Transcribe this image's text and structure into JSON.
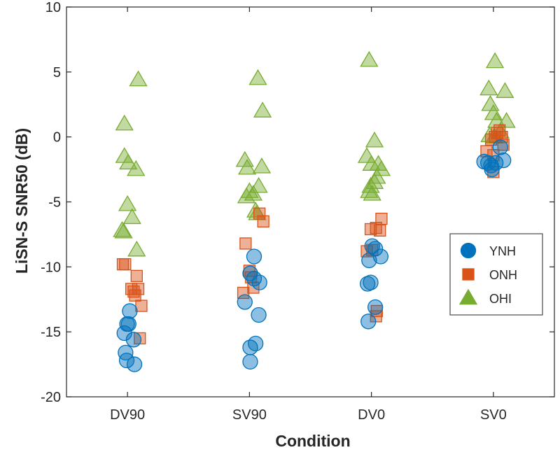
{
  "chart_data": {
    "type": "scatter",
    "xlabel": "Condition",
    "ylabel": "LiSN-S SNR50 (dB)",
    "categories": [
      "DV90",
      "SV90",
      "DV0",
      "SV0"
    ],
    "ylim": [
      -20,
      10
    ],
    "yticks": [
      10,
      5,
      0,
      -5,
      -10,
      -15,
      -20
    ],
    "ytick_labels": [
      "10",
      "5",
      "0",
      "-5",
      "-10",
      "-15",
      "-20"
    ],
    "grid": false,
    "legend_position": "right",
    "series": [
      {
        "name": "YNH",
        "marker": "circle",
        "color": "#0072BD",
        "points": [
          {
            "category": "DV90",
            "offset": 0.3,
            "y": -13.4
          },
          {
            "category": "DV90",
            "offset": -0.05,
            "y": -14.4
          },
          {
            "category": "DV90",
            "offset": 0.15,
            "y": -14.4
          },
          {
            "category": "DV90",
            "offset": -0.4,
            "y": -15.1
          },
          {
            "category": "DV90",
            "offset": 0.8,
            "y": -15.6
          },
          {
            "category": "DV90",
            "offset": -0.25,
            "y": -16.6
          },
          {
            "category": "DV90",
            "offset": -0.1,
            "y": -17.2
          },
          {
            "category": "DV90",
            "offset": 0.9,
            "y": -17.5
          },
          {
            "category": "SV90",
            "offset": 0.6,
            "y": -9.2
          },
          {
            "category": "SV90",
            "offset": 0.1,
            "y": -10.5
          },
          {
            "category": "SV90",
            "offset": 0.6,
            "y": -10.9
          },
          {
            "category": "SV90",
            "offset": 1.3,
            "y": -11.2
          },
          {
            "category": "SV90",
            "offset": -0.6,
            "y": -12.7
          },
          {
            "category": "SV90",
            "offset": 1.2,
            "y": -13.7
          },
          {
            "category": "SV90",
            "offset": 0.8,
            "y": -15.9
          },
          {
            "category": "SV90",
            "offset": 0.1,
            "y": -16.2
          },
          {
            "category": "SV90",
            "offset": 0.1,
            "y": -17.3
          },
          {
            "category": "DV0",
            "offset": 0.1,
            "y": -8.4
          },
          {
            "category": "DV0",
            "offset": 0.5,
            "y": -8.6
          },
          {
            "category": "DV0",
            "offset": 1.2,
            "y": -9.2
          },
          {
            "category": "DV0",
            "offset": -0.3,
            "y": -9.5
          },
          {
            "category": "DV0",
            "offset": -0.5,
            "y": -11.3
          },
          {
            "category": "DV0",
            "offset": -0.1,
            "y": -11.2
          },
          {
            "category": "DV0",
            "offset": 0.5,
            "y": -13.1
          },
          {
            "category": "DV0",
            "offset": -0.4,
            "y": -14.2
          },
          {
            "category": "SV0",
            "offset": -1.2,
            "y": -1.9
          },
          {
            "category": "SV0",
            "offset": -0.7,
            "y": -2.0
          },
          {
            "category": "SV0",
            "offset": -0.3,
            "y": -2.2
          },
          {
            "category": "SV0",
            "offset": 0.3,
            "y": -2.0
          },
          {
            "category": "SV0",
            "offset": 0.9,
            "y": -0.8
          },
          {
            "category": "SV0",
            "offset": 1.3,
            "y": -1.8
          },
          {
            "category": "SV0",
            "offset": -0.2,
            "y": -2.5
          }
        ]
      },
      {
        "name": "ONH",
        "marker": "square",
        "color": "#D95319",
        "points": [
          {
            "category": "DV90",
            "offset": -0.6,
            "y": -9.8
          },
          {
            "category": "DV90",
            "offset": -0.3,
            "y": -9.8
          },
          {
            "category": "DV90",
            "offset": 1.2,
            "y": -10.7
          },
          {
            "category": "DV90",
            "offset": 0.5,
            "y": -11.7
          },
          {
            "category": "DV90",
            "offset": 1.4,
            "y": -11.7
          },
          {
            "category": "DV90",
            "offset": 1.0,
            "y": -12.2
          },
          {
            "category": "DV90",
            "offset": 0.8,
            "y": -11.9
          },
          {
            "category": "DV90",
            "offset": 1.8,
            "y": -13.0
          },
          {
            "category": "DV90",
            "offset": 1.6,
            "y": -15.5
          },
          {
            "category": "SV90",
            "offset": 1.3,
            "y": -5.9
          },
          {
            "category": "SV90",
            "offset": 1.8,
            "y": -6.5
          },
          {
            "category": "SV90",
            "offset": -0.5,
            "y": -8.2
          },
          {
            "category": "SV90",
            "offset": 0.0,
            "y": -10.3
          },
          {
            "category": "SV90",
            "offset": 0.2,
            "y": -10.8
          },
          {
            "category": "SV90",
            "offset": 0.5,
            "y": -11.6
          },
          {
            "category": "SV90",
            "offset": -0.8,
            "y": -12.0
          },
          {
            "category": "DV0",
            "offset": -0.1,
            "y": -7.1
          },
          {
            "category": "DV0",
            "offset": 0.6,
            "y": -7.0
          },
          {
            "category": "DV0",
            "offset": 1.3,
            "y": -6.3
          },
          {
            "category": "DV0",
            "offset": 1.1,
            "y": -7.2
          },
          {
            "category": "DV0",
            "offset": 0.1,
            "y": -8.7
          },
          {
            "category": "DV0",
            "offset": -0.6,
            "y": -8.8
          },
          {
            "category": "DV0",
            "offset": 0.7,
            "y": -13.4
          },
          {
            "category": "DV0",
            "offset": 0.6,
            "y": -13.8
          },
          {
            "category": "SV0",
            "offset": -0.3,
            "y": -0.2
          },
          {
            "category": "SV0",
            "offset": 0.2,
            "y": 0.0
          },
          {
            "category": "SV0",
            "offset": 0.5,
            "y": 0.3
          },
          {
            "category": "SV0",
            "offset": 0.8,
            "y": 0.5
          },
          {
            "category": "SV0",
            "offset": 1.1,
            "y": 0.0
          },
          {
            "category": "SV0",
            "offset": 1.3,
            "y": -0.6
          },
          {
            "category": "SV0",
            "offset": -0.9,
            "y": -1.1
          },
          {
            "category": "SV0",
            "offset": 0.0,
            "y": -1.4
          },
          {
            "category": "SV0",
            "offset": 0.0,
            "y": -2.7
          }
        ]
      },
      {
        "name": "OHI",
        "marker": "triangle",
        "color": "#77AC30",
        "points": [
          {
            "category": "DV90",
            "offset": 1.4,
            "y": 4.4
          },
          {
            "category": "DV90",
            "offset": -0.4,
            "y": 1.0
          },
          {
            "category": "DV90",
            "offset": -0.4,
            "y": -1.5
          },
          {
            "category": "DV90",
            "offset": 0.1,
            "y": -2.0
          },
          {
            "category": "DV90",
            "offset": 1.1,
            "y": -2.5
          },
          {
            "category": "DV90",
            "offset": 0.0,
            "y": -5.2
          },
          {
            "category": "DV90",
            "offset": 0.6,
            "y": -6.2
          },
          {
            "category": "DV90",
            "offset": -0.7,
            "y": -7.2
          },
          {
            "category": "DV90",
            "offset": -0.5,
            "y": -7.3
          },
          {
            "category": "DV90",
            "offset": 1.2,
            "y": -8.7
          },
          {
            "category": "SV90",
            "offset": 1.1,
            "y": 4.5
          },
          {
            "category": "SV90",
            "offset": 1.7,
            "y": 2.0
          },
          {
            "category": "SV90",
            "offset": -0.6,
            "y": -1.8
          },
          {
            "category": "SV90",
            "offset": -0.3,
            "y": -2.4
          },
          {
            "category": "SV90",
            "offset": 1.6,
            "y": -2.3
          },
          {
            "category": "SV90",
            "offset": 1.2,
            "y": -3.8
          },
          {
            "category": "SV90",
            "offset": 0.0,
            "y": -4.2
          },
          {
            "category": "SV90",
            "offset": 0.5,
            "y": -4.4
          },
          {
            "category": "SV90",
            "offset": -0.4,
            "y": -4.6
          },
          {
            "category": "SV90",
            "offset": 0.8,
            "y": -5.7
          },
          {
            "category": "SV90",
            "offset": 1.0,
            "y": -5.9
          },
          {
            "category": "DV0",
            "offset": -0.3,
            "y": 5.9
          },
          {
            "category": "DV0",
            "offset": 0.4,
            "y": -0.3
          },
          {
            "category": "DV0",
            "offset": -0.6,
            "y": -1.5
          },
          {
            "category": "DV0",
            "offset": 0.0,
            "y": -2.1
          },
          {
            "category": "DV0",
            "offset": 0.9,
            "y": -2.1
          },
          {
            "category": "DV0",
            "offset": 1.3,
            "y": -2.5
          },
          {
            "category": "DV0",
            "offset": 0.7,
            "y": -3.1
          },
          {
            "category": "DV0",
            "offset": 0.4,
            "y": -3.5
          },
          {
            "category": "DV0",
            "offset": -0.1,
            "y": -3.8
          },
          {
            "category": "DV0",
            "offset": -0.3,
            "y": -4.2
          },
          {
            "category": "DV0",
            "offset": 0.1,
            "y": -4.4
          },
          {
            "category": "SV0",
            "offset": 0.2,
            "y": 5.8
          },
          {
            "category": "SV0",
            "offset": -0.6,
            "y": 3.7
          },
          {
            "category": "SV0",
            "offset": 1.5,
            "y": 3.5
          },
          {
            "category": "SV0",
            "offset": -0.4,
            "y": 2.5
          },
          {
            "category": "SV0",
            "offset": 0.0,
            "y": 1.8
          },
          {
            "category": "SV0",
            "offset": 0.4,
            "y": 1.2
          },
          {
            "category": "SV0",
            "offset": 1.7,
            "y": 1.2
          },
          {
            "category": "SV0",
            "offset": 0.9,
            "y": 0.4
          },
          {
            "category": "SV0",
            "offset": -0.5,
            "y": 0.1
          },
          {
            "category": "SV0",
            "offset": 0.1,
            "y": 0.0
          }
        ]
      }
    ]
  }
}
